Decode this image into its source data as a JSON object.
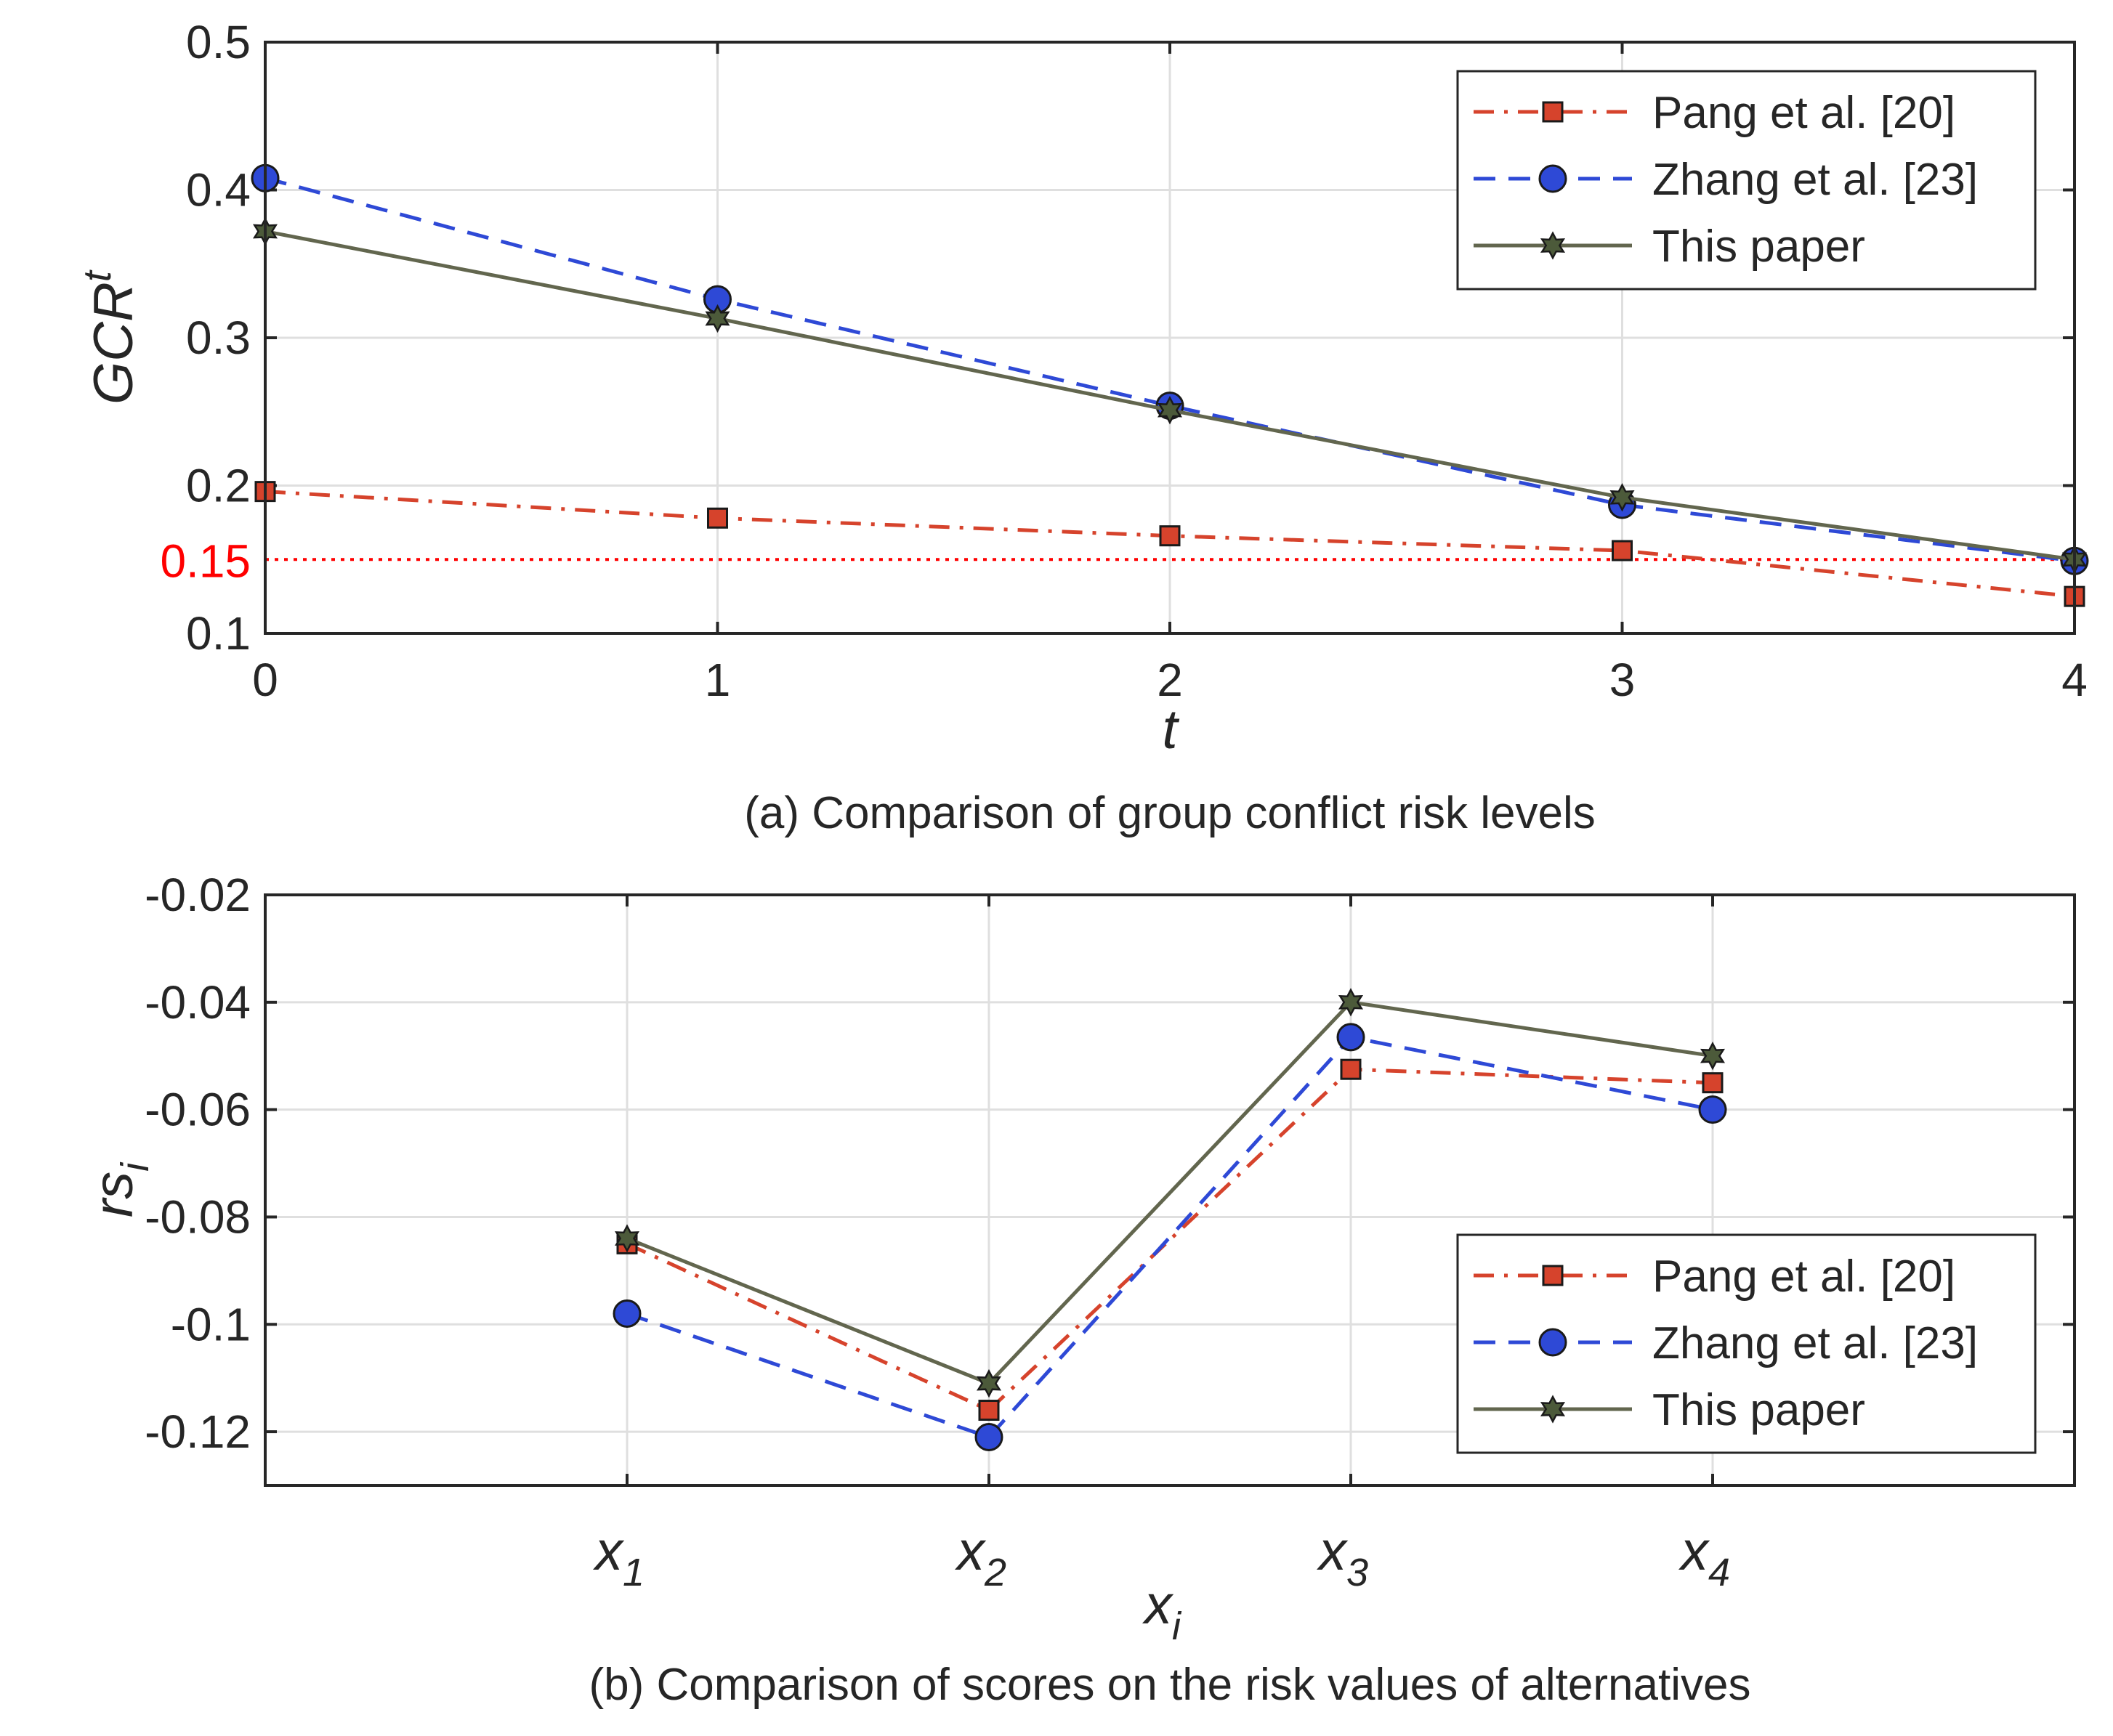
{
  "colors": {
    "pang": "#d6432c",
    "zhang": "#2e49d6",
    "this": "#62664e",
    "marker_this": "#4c5a3a",
    "threshold": "#ff0000"
  },
  "chart_data": [
    {
      "type": "line",
      "title": "",
      "caption": "(a) Comparison of group conflict risk levels",
      "xlabel": "t",
      "ylabel": {
        "base": "GCR",
        "sup": "t"
      },
      "xlim": [
        0,
        4
      ],
      "ylim": [
        0.1,
        0.5
      ],
      "xticks": [
        0,
        1,
        2,
        3,
        4
      ],
      "xtick_labels": [
        "0",
        "1",
        "2",
        "3",
        "4"
      ],
      "yticks": [
        0.1,
        0.2,
        0.3,
        0.4,
        0.5
      ],
      "ytick_labels": [
        "0.1",
        "0.2",
        "0.3",
        "0.4",
        "0.5"
      ],
      "grid": true,
      "legend_position": "top-right",
      "x": [
        0,
        1,
        2,
        3,
        4
      ],
      "series": [
        {
          "name": "Pang et al. [20]",
          "style": "dashdot",
          "marker": "square",
          "color_key": "pang",
          "values": [
            0.196,
            0.178,
            0.166,
            0.156,
            0.125
          ]
        },
        {
          "name": "Zhang et al. [23]",
          "style": "dashed",
          "marker": "circle",
          "color_key": "zhang",
          "values": [
            0.408,
            0.326,
            0.254,
            0.187,
            0.149
          ]
        },
        {
          "name": "This paper",
          "style": "solid",
          "marker": "hexagram",
          "color_key": "this",
          "values": [
            0.372,
            0.313,
            0.251,
            0.192,
            0.15
          ]
        }
      ],
      "threshold": {
        "value": 0.15,
        "label": "0.15",
        "style": "dotted"
      }
    },
    {
      "type": "line",
      "title": "",
      "caption": "(b) Comparison of scores on the risk values of alternatives",
      "xlabel": {
        "base": "x",
        "sub": "i"
      },
      "ylabel": {
        "base": "rs",
        "sub": "i"
      },
      "xlim": [
        0,
        5
      ],
      "ylim": [
        -0.13,
        -0.02
      ],
      "xticks": [
        1,
        2,
        3,
        4
      ],
      "xtick_labels": [
        {
          "base": "x",
          "sub": "1"
        },
        {
          "base": "x",
          "sub": "2"
        },
        {
          "base": "x",
          "sub": "3"
        },
        {
          "base": "x",
          "sub": "4"
        }
      ],
      "yticks": [
        -0.12,
        -0.1,
        -0.08,
        -0.06,
        -0.04,
        -0.02
      ],
      "ytick_labels": [
        "-0.12",
        "-0.1",
        "-0.08",
        "-0.06",
        "-0.04",
        "-0.02"
      ],
      "grid": true,
      "legend_position": "bottom-right",
      "x": [
        1,
        2,
        3,
        4
      ],
      "series": [
        {
          "name": "Pang et al. [20]",
          "style": "dashdot",
          "marker": "square",
          "color_key": "pang",
          "values": [
            -0.085,
            -0.116,
            -0.0525,
            -0.055
          ]
        },
        {
          "name": "Zhang et al. [23]",
          "style": "dashed",
          "marker": "circle",
          "color_key": "zhang",
          "values": [
            -0.098,
            -0.121,
            -0.0465,
            -0.06
          ]
        },
        {
          "name": "This paper",
          "style": "solid",
          "marker": "hexagram",
          "color_key": "this",
          "values": [
            -0.084,
            -0.111,
            -0.04,
            -0.05
          ]
        }
      ]
    }
  ]
}
